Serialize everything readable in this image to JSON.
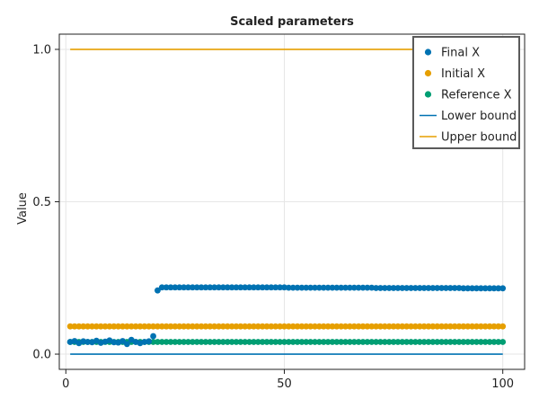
{
  "chart_data": {
    "type": "scatter",
    "title": "Scaled parameters",
    "xlabel": "",
    "ylabel": "Value",
    "xlim": [
      -1.5,
      105
    ],
    "ylim": [
      -0.05,
      1.05
    ],
    "x_ticks": [
      0,
      50,
      100
    ],
    "x_tick_labels": [
      "0",
      "50",
      "100"
    ],
    "y_ticks": [
      0.0,
      0.5,
      1.0
    ],
    "y_tick_labels": [
      "0.0",
      "0.5",
      "1.0"
    ],
    "grid": true,
    "legend_position": "top-right",
    "series": [
      {
        "name": "Final X",
        "kind": "scatter",
        "color": "#0072b2",
        "x": [
          1,
          2,
          3,
          4,
          5,
          6,
          7,
          8,
          9,
          10,
          11,
          12,
          13,
          14,
          15,
          16,
          17,
          18,
          19,
          20,
          21,
          22,
          23,
          24,
          25,
          26,
          27,
          28,
          29,
          30,
          31,
          32,
          33,
          34,
          35,
          36,
          37,
          38,
          39,
          40,
          41,
          42,
          43,
          44,
          45,
          46,
          47,
          48,
          49,
          50,
          51,
          52,
          53,
          54,
          55,
          56,
          57,
          58,
          59,
          60,
          61,
          62,
          63,
          64,
          65,
          66,
          67,
          68,
          69,
          70,
          71,
          72,
          73,
          74,
          75,
          76,
          77,
          78,
          79,
          80,
          81,
          82,
          83,
          84,
          85,
          86,
          87,
          88,
          89,
          90,
          91,
          92,
          93,
          94,
          95,
          96,
          97,
          98,
          99,
          100
        ],
        "y": [
          0.04,
          0.043,
          0.036,
          0.042,
          0.04,
          0.039,
          0.044,
          0.037,
          0.041,
          0.045,
          0.039,
          0.038,
          0.043,
          0.033,
          0.047,
          0.04,
          0.036,
          0.04,
          0.042,
          0.059,
          0.209,
          0.219,
          0.219,
          0.219,
          0.219,
          0.219,
          0.219,
          0.219,
          0.219,
          0.219,
          0.219,
          0.219,
          0.219,
          0.219,
          0.219,
          0.219,
          0.219,
          0.219,
          0.219,
          0.219,
          0.219,
          0.219,
          0.219,
          0.219,
          0.219,
          0.219,
          0.219,
          0.219,
          0.219,
          0.219,
          0.218,
          0.218,
          0.218,
          0.218,
          0.218,
          0.218,
          0.218,
          0.218,
          0.218,
          0.218,
          0.218,
          0.218,
          0.218,
          0.218,
          0.218,
          0.218,
          0.218,
          0.218,
          0.218,
          0.218,
          0.217,
          0.217,
          0.217,
          0.217,
          0.217,
          0.217,
          0.217,
          0.217,
          0.217,
          0.217,
          0.217,
          0.217,
          0.217,
          0.217,
          0.217,
          0.217,
          0.217,
          0.217,
          0.217,
          0.217,
          0.216,
          0.216,
          0.216,
          0.216,
          0.216,
          0.216,
          0.216,
          0.216,
          0.216,
          0.216
        ]
      },
      {
        "name": "Initial X",
        "kind": "scatter",
        "color": "#e69f00",
        "x": [
          1,
          2,
          3,
          4,
          5,
          6,
          7,
          8,
          9,
          10,
          11,
          12,
          13,
          14,
          15,
          16,
          17,
          18,
          19,
          20,
          21,
          22,
          23,
          24,
          25,
          26,
          27,
          28,
          29,
          30,
          31,
          32,
          33,
          34,
          35,
          36,
          37,
          38,
          39,
          40,
          41,
          42,
          43,
          44,
          45,
          46,
          47,
          48,
          49,
          50,
          51,
          52,
          53,
          54,
          55,
          56,
          57,
          58,
          59,
          60,
          61,
          62,
          63,
          64,
          65,
          66,
          67,
          68,
          69,
          70,
          71,
          72,
          73,
          74,
          75,
          76,
          77,
          78,
          79,
          80,
          81,
          82,
          83,
          84,
          85,
          86,
          87,
          88,
          89,
          90,
          91,
          92,
          93,
          94,
          95,
          96,
          97,
          98,
          99,
          100
        ],
        "y_constant": 0.091
      },
      {
        "name": "Reference X",
        "kind": "scatter",
        "color": "#009e73",
        "x": [
          1,
          2,
          3,
          4,
          5,
          6,
          7,
          8,
          9,
          10,
          11,
          12,
          13,
          14,
          15,
          16,
          17,
          18,
          19,
          20,
          21,
          22,
          23,
          24,
          25,
          26,
          27,
          28,
          29,
          30,
          31,
          32,
          33,
          34,
          35,
          36,
          37,
          38,
          39,
          40,
          41,
          42,
          43,
          44,
          45,
          46,
          47,
          48,
          49,
          50,
          51,
          52,
          53,
          54,
          55,
          56,
          57,
          58,
          59,
          60,
          61,
          62,
          63,
          64,
          65,
          66,
          67,
          68,
          69,
          70,
          71,
          72,
          73,
          74,
          75,
          76,
          77,
          78,
          79,
          80,
          81,
          82,
          83,
          84,
          85,
          86,
          87,
          88,
          89,
          90,
          91,
          92,
          93,
          94,
          95,
          96,
          97,
          98,
          99,
          100
        ],
        "y_constant": 0.04
      },
      {
        "name": "Lower bound",
        "kind": "line",
        "color": "#0072b2",
        "x": [
          1,
          100
        ],
        "y": [
          0.0,
          0.0
        ]
      },
      {
        "name": "Upper bound",
        "kind": "line",
        "color": "#e69f00",
        "x": [
          1,
          100
        ],
        "y": [
          1.0,
          1.0
        ]
      }
    ]
  }
}
